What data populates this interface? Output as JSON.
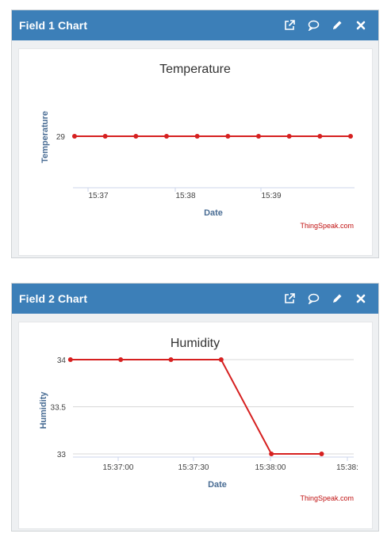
{
  "panels": [
    {
      "header_title": "Field 1 Chart",
      "tools": [
        "external-link-icon",
        "comment-icon",
        "pencil-icon",
        "close-icon"
      ],
      "credit": "ThingSpeak.com"
    },
    {
      "header_title": "Field 2 Chart",
      "tools": [
        "external-link-icon",
        "comment-icon",
        "pencil-icon",
        "close-icon"
      ],
      "credit": "ThingSpeak.com"
    }
  ],
  "colors": {
    "header": "#3c7fb8",
    "series": "#d62020",
    "axis_title": "#4a6d94",
    "credit": "#c01010"
  },
  "chart_data": [
    {
      "type": "line",
      "title": "Temperature",
      "xlabel": "Date",
      "ylabel": "Temperature",
      "x_tick_labels": [
        "15:37",
        "15:38",
        "15:39"
      ],
      "y_tick_labels": [
        "29"
      ],
      "series": [
        {
          "values": [
            29,
            29,
            29,
            29,
            29,
            29,
            29,
            29,
            29,
            29
          ]
        }
      ],
      "grid": false
    },
    {
      "type": "line",
      "title": "Humidity",
      "xlabel": "Date",
      "ylabel": "Humidity",
      "x_tick_labels": [
        "15:37:00",
        "15:37:30",
        "15:38:00",
        "15:38:"
      ],
      "y_tick_labels": [
        "34",
        "33.5",
        "33"
      ],
      "ylim": [
        33,
        34
      ],
      "series": [
        {
          "x": [
            "15:36:41",
            "15:37:01",
            "15:37:21",
            "15:37:41",
            "15:38:01",
            "15:38:21"
          ],
          "values": [
            34,
            34,
            34,
            34,
            33,
            33
          ]
        }
      ],
      "grid": true
    }
  ]
}
